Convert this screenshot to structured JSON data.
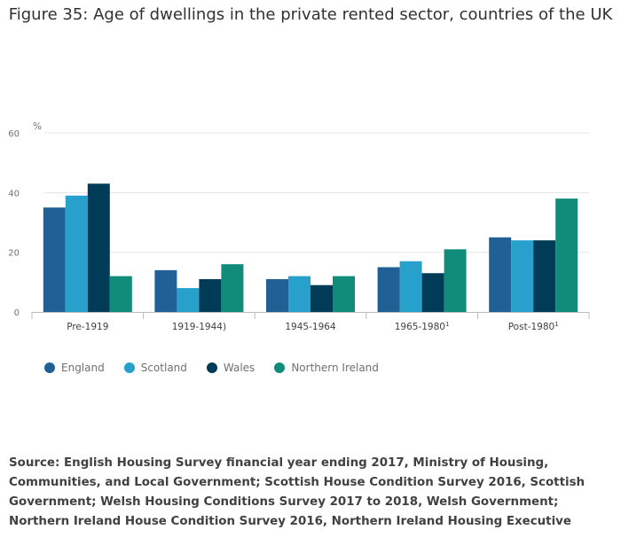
{
  "chart_data": {
    "type": "bar",
    "title": "Figure 35: Age of dwellings in the private rented sector, countries of the UK",
    "ylabel": "%",
    "xlabel": "",
    "ylim": [
      0,
      60
    ],
    "yticks": [
      0,
      20,
      40,
      60
    ],
    "categories": [
      {
        "label": "Pre-1919",
        "sup": ""
      },
      {
        "label": "1919-1944)",
        "sup": ""
      },
      {
        "label": "1945-1964",
        "sup": ""
      },
      {
        "label": "1965-1980",
        "sup": "1"
      },
      {
        "label": "Post-1980",
        "sup": "1"
      }
    ],
    "series": [
      {
        "name": "England",
        "color": "#206095",
        "values": [
          35,
          14,
          11,
          15,
          25
        ]
      },
      {
        "name": "Scotland",
        "color": "#27a0cc",
        "values": [
          39,
          8,
          12,
          17,
          24
        ]
      },
      {
        "name": "Wales",
        "color": "#003c57",
        "values": [
          43,
          11,
          9,
          13,
          24
        ]
      },
      {
        "name": "Northern Ireland",
        "color": "#118c7b",
        "values": [
          12,
          16,
          12,
          21,
          38
        ]
      }
    ],
    "grid": true,
    "legend_position": "bottom-left"
  },
  "source": "Source: English Housing Survey financial year ending 2017, Ministry of Housing, Communities, and Local Government; Scottish House Condition Survey 2016, Scottish Government; Welsh Housing Conditions Survey 2017 to 2018, Welsh Government; Northern Ireland House Condition Survey 2016, Northern Ireland Housing Executive"
}
